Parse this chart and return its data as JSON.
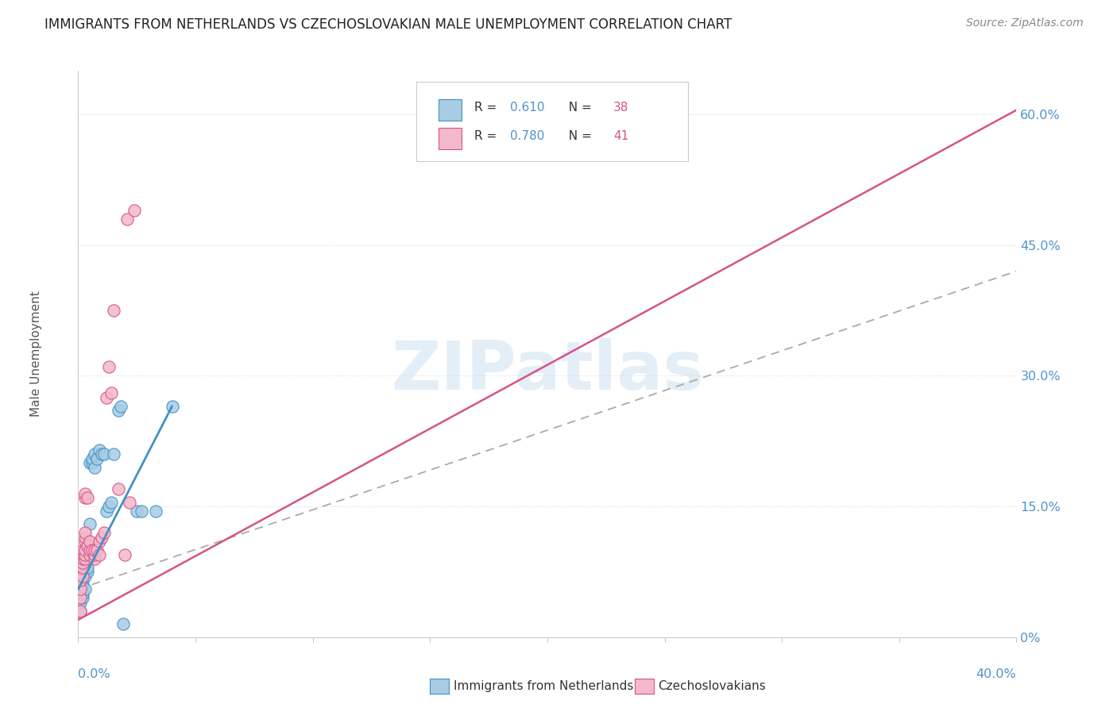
{
  "title": "IMMIGRANTS FROM NETHERLANDS VS CZECHOSLOVAKIAN MALE UNEMPLOYMENT CORRELATION CHART",
  "source": "Source: ZipAtlas.com",
  "ylabel": "Male Unemployment",
  "watermark": "ZIPatlas",
  "blue_color": "#a8cce4",
  "pink_color": "#f4b8cb",
  "blue_edge_color": "#4292c6",
  "pink_edge_color": "#d6538a",
  "blue_line_color": "#4292c6",
  "pink_line_color": "#d6538a",
  "right_ytick_vals": [
    0.0,
    0.15,
    0.3,
    0.45,
    0.6
  ],
  "right_ytick_labels": [
    "0%",
    "15.0%",
    "30.0%",
    "45.0%",
    "60.0%"
  ],
  "xmin": 0.0,
  "xmax": 0.4,
  "ymin": 0.0,
  "ymax": 0.65,
  "blue_scatter": [
    [
      0.001,
      0.03
    ],
    [
      0.001,
      0.04
    ],
    [
      0.002,
      0.045
    ],
    [
      0.002,
      0.05
    ],
    [
      0.002,
      0.06
    ],
    [
      0.002,
      0.065
    ],
    [
      0.003,
      0.055
    ],
    [
      0.003,
      0.07
    ],
    [
      0.003,
      0.075
    ],
    [
      0.003,
      0.09
    ],
    [
      0.003,
      0.095
    ],
    [
      0.004,
      0.075
    ],
    [
      0.004,
      0.08
    ],
    [
      0.004,
      0.09
    ],
    [
      0.004,
      0.1
    ],
    [
      0.005,
      0.095
    ],
    [
      0.005,
      0.1
    ],
    [
      0.005,
      0.13
    ],
    [
      0.005,
      0.2
    ],
    [
      0.006,
      0.2
    ],
    [
      0.006,
      0.205
    ],
    [
      0.007,
      0.21
    ],
    [
      0.007,
      0.195
    ],
    [
      0.008,
      0.205
    ],
    [
      0.009,
      0.215
    ],
    [
      0.01,
      0.21
    ],
    [
      0.011,
      0.21
    ],
    [
      0.012,
      0.145
    ],
    [
      0.013,
      0.15
    ],
    [
      0.014,
      0.155
    ],
    [
      0.015,
      0.21
    ],
    [
      0.017,
      0.26
    ],
    [
      0.018,
      0.265
    ],
    [
      0.019,
      0.015
    ],
    [
      0.025,
      0.145
    ],
    [
      0.027,
      0.145
    ],
    [
      0.033,
      0.145
    ],
    [
      0.04,
      0.265
    ]
  ],
  "pink_scatter": [
    [
      0.001,
      0.03
    ],
    [
      0.001,
      0.045
    ],
    [
      0.001,
      0.055
    ],
    [
      0.001,
      0.065
    ],
    [
      0.002,
      0.07
    ],
    [
      0.002,
      0.08
    ],
    [
      0.002,
      0.085
    ],
    [
      0.002,
      0.09
    ],
    [
      0.002,
      0.095
    ],
    [
      0.002,
      0.1
    ],
    [
      0.003,
      0.09
    ],
    [
      0.003,
      0.095
    ],
    [
      0.003,
      0.1
    ],
    [
      0.003,
      0.11
    ],
    [
      0.003,
      0.115
    ],
    [
      0.003,
      0.12
    ],
    [
      0.003,
      0.16
    ],
    [
      0.003,
      0.165
    ],
    [
      0.004,
      0.105
    ],
    [
      0.004,
      0.16
    ],
    [
      0.005,
      0.095
    ],
    [
      0.005,
      0.1
    ],
    [
      0.005,
      0.11
    ],
    [
      0.006,
      0.1
    ],
    [
      0.007,
      0.09
    ],
    [
      0.007,
      0.095
    ],
    [
      0.007,
      0.1
    ],
    [
      0.008,
      0.1
    ],
    [
      0.009,
      0.095
    ],
    [
      0.009,
      0.11
    ],
    [
      0.01,
      0.115
    ],
    [
      0.011,
      0.12
    ],
    [
      0.012,
      0.275
    ],
    [
      0.013,
      0.31
    ],
    [
      0.014,
      0.28
    ],
    [
      0.015,
      0.375
    ],
    [
      0.017,
      0.17
    ],
    [
      0.02,
      0.095
    ],
    [
      0.021,
      0.48
    ],
    [
      0.022,
      0.155
    ],
    [
      0.024,
      0.49
    ]
  ],
  "pink_line_x": [
    0.0,
    0.4
  ],
  "pink_line_y": [
    0.02,
    0.605
  ],
  "blue_solid_line_x": [
    0.0,
    0.04
  ],
  "blue_solid_line_y": [
    0.055,
    0.265
  ],
  "blue_dashed_line_x": [
    0.0,
    0.4
  ],
  "blue_dashed_line_y": [
    0.055,
    0.42
  ]
}
